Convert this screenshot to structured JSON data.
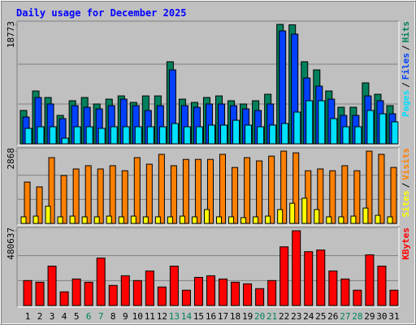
{
  "chart_data": [
    {
      "type": "bar",
      "title": "Daily usage for December 2025",
      "ylim": [
        0,
        18773
      ],
      "yticks": [
        18773
      ],
      "legend_separator": "/",
      "series": [
        {
          "name": "Hits",
          "color": "#00805c",
          "values": [
            5240,
            8300,
            7280,
            4470,
            6770,
            7280,
            6260,
            7020,
            7530,
            6510,
            7530,
            7530,
            12900,
            7020,
            6510,
            7280,
            7530,
            6770,
            6260,
            6770,
            7790,
            18773,
            18700,
            12900,
            11620,
            8300,
            5750,
            5750,
            9580,
            7790,
            6000
          ]
        },
        {
          "name": "Files",
          "color": "#0040ff",
          "values": [
            4210,
            7280,
            6260,
            3960,
            6000,
            5750,
            5490,
            6000,
            7020,
            6000,
            5240,
            6000,
            11620,
            6000,
            5750,
            6260,
            6260,
            6000,
            5490,
            5240,
            6260,
            17750,
            17240,
            10340,
            9070,
            7020,
            4470,
            4470,
            7530,
            6770,
            4720
          ]
        },
        {
          "name": "Pages",
          "color": "#00e0ff",
          "values": [
            2430,
            2680,
            2680,
            890,
            2680,
            2680,
            2430,
            2680,
            2680,
            2680,
            2680,
            2680,
            3190,
            2680,
            2680,
            2940,
            2940,
            3700,
            2940,
            2680,
            2940,
            3190,
            4980,
            6770,
            6770,
            3960,
            2680,
            2680,
            5240,
            4720,
            3450
          ]
        }
      ]
    },
    {
      "type": "bar",
      "ylim": [
        0,
        2868
      ],
      "yticks": [
        2868
      ],
      "series": [
        {
          "name": "Visits",
          "color": "#ff8000",
          "values": [
            1640,
            1450,
            2610,
            1900,
            2160,
            2290,
            2160,
            2290,
            2090,
            2610,
            2350,
            2740,
            2290,
            2540,
            2540,
            2540,
            2740,
            2220,
            2610,
            2480,
            2670,
            2868,
            2800,
            2090,
            2160,
            2090,
            2290,
            2090,
            2868,
            2740,
            2220
          ]
        },
        {
          "name": "Sites",
          "color": "#ffff00",
          "values": [
            260,
            290,
            680,
            260,
            290,
            260,
            260,
            290,
            260,
            290,
            260,
            260,
            260,
            290,
            260,
            550,
            260,
            260,
            230,
            260,
            290,
            550,
            800,
            1000,
            550,
            260,
            260,
            290,
            610,
            320,
            260
          ]
        }
      ]
    },
    {
      "type": "bar",
      "ylim": [
        0,
        480637
      ],
      "yticks": [
        480637
      ],
      "categories": [
        "1",
        "2",
        "3",
        "4",
        "5",
        "6",
        "7",
        "8",
        "9",
        "10",
        "11",
        "12",
        "13",
        "14",
        "15",
        "16",
        "17",
        "18",
        "19",
        "20",
        "21",
        "22",
        "23",
        "24",
        "25",
        "26",
        "27",
        "28",
        "29",
        "30",
        "31"
      ],
      "category_colors": [
        "#000000",
        "#000000",
        "#000000",
        "#000000",
        "#000000",
        "#00805c",
        "#00805c",
        "#000000",
        "#000000",
        "#000000",
        "#000000",
        "#000000",
        "#00805c",
        "#00805c",
        "#000000",
        "#000000",
        "#000000",
        "#000000",
        "#000000",
        "#00805c",
        "#00805c",
        "#000000",
        "#000000",
        "#000000",
        "#000000",
        "#000000",
        "#00805c",
        "#00805c",
        "#000000",
        "#000000",
        "#000000"
      ],
      "series": [
        {
          "name": "KBytes",
          "color": "#ff0000",
          "values": [
            160200,
            149900,
            253200,
            87900,
            170500,
            149900,
            304900,
            129200,
            191200,
            160200,
            222200,
            118900,
            253200,
            98200,
            180900,
            191200,
            170500,
            149900,
            139500,
            108500,
            160200,
            377300,
            480637,
            346300,
            356600,
            222200,
            170500,
            98200,
            325600,
            253200,
            98200
          ]
        }
      ]
    }
  ]
}
